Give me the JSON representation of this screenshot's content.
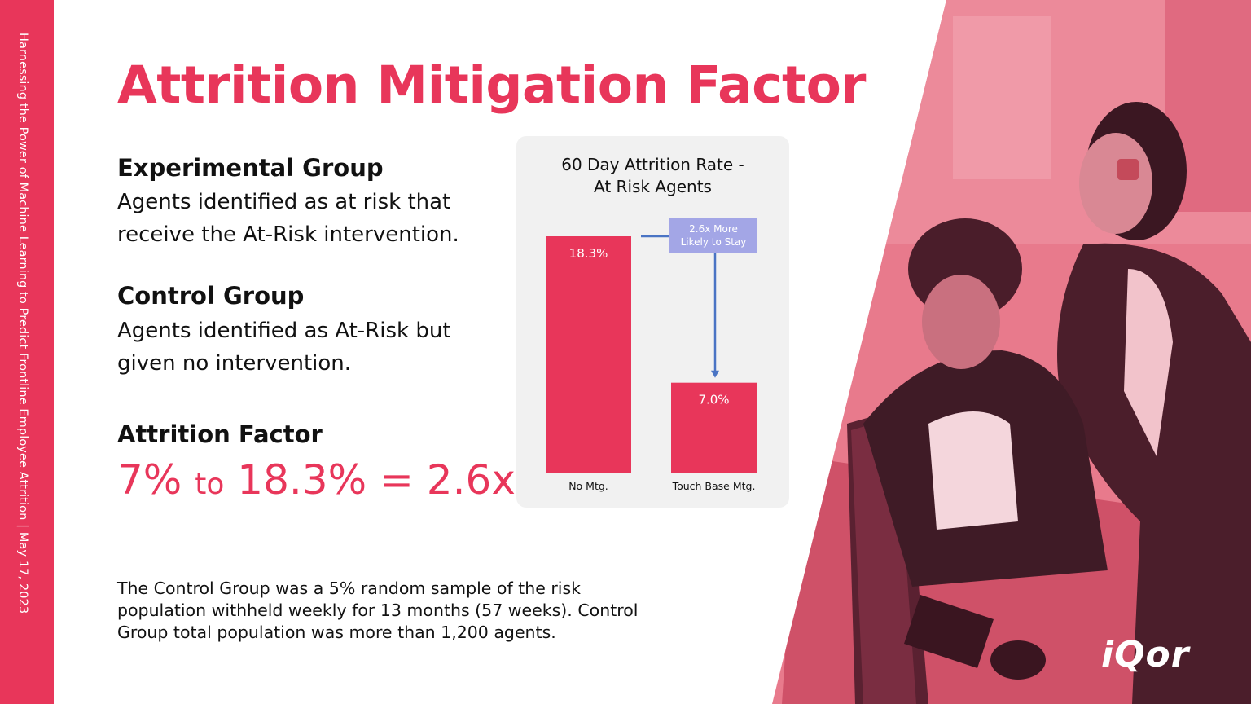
{
  "sidebar": {
    "text": "Harnessing the Power of Machine Learning to Predict Frontline Employee Attrition | May 17, 2023"
  },
  "page": {
    "title": "Attrition Mitigation Factor"
  },
  "experimental": {
    "heading": "Experimental Group",
    "body": "Agents identified as at risk that receive the At-Risk intervention."
  },
  "control": {
    "heading": "Control Group",
    "body": "Agents identified as At-Risk but given no intervention."
  },
  "factor": {
    "heading": "Attrition Factor",
    "value_a": "7%",
    "connector": "to",
    "value_b": "18.3% = 2.6x"
  },
  "footnote": {
    "text": "The Control Group was a 5% random sample of the risk population withheld weekly for 13 months (57 weeks). Control Group total population was more than 1,200 agents."
  },
  "logo": {
    "text": "iQor"
  },
  "colors": {
    "accent": "#e8365a",
    "panel": "#f1f1f1",
    "callout": "#a3a6e6",
    "arrow": "#4a74c4"
  },
  "chart_data": {
    "type": "bar",
    "title": "60 Day Attrition Rate - At Risk Agents",
    "categories": [
      "No Mtg.",
      "Touch Base Mtg."
    ],
    "values": [
      18.3,
      7.0
    ],
    "data_labels": [
      "18.3%",
      "7.0%"
    ],
    "ylim": [
      0,
      18.3
    ],
    "grid": false,
    "annotation": "2.6x More Likely to Stay"
  }
}
